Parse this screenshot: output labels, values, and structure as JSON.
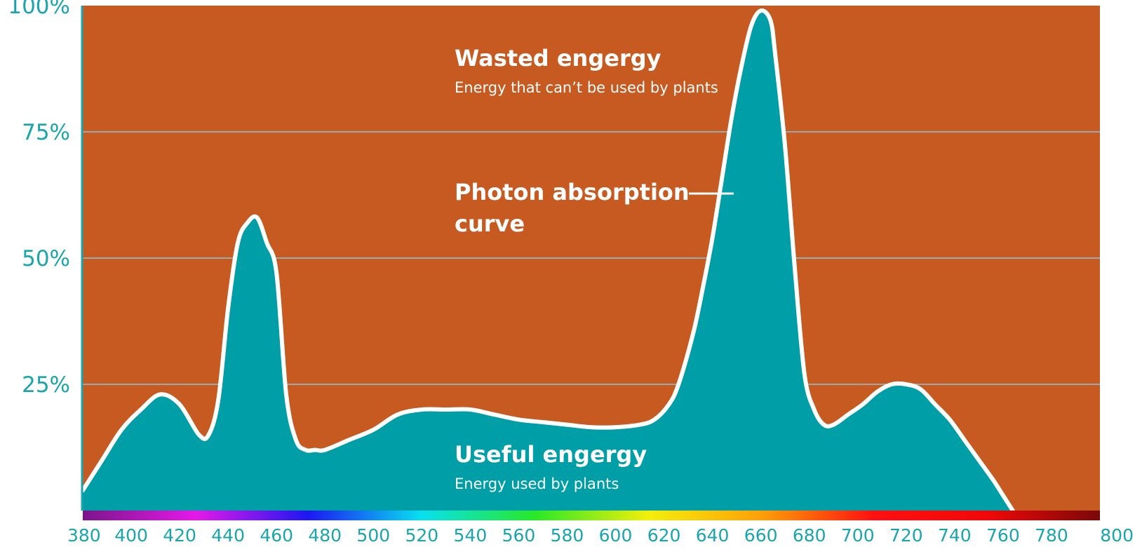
{
  "colors": {
    "background": "#c65a20",
    "fill": "#009ea7",
    "curve": "#ffffff",
    "axis": "#1aa5ad",
    "grid": "#9aa9a8"
  },
  "chart_data": {
    "type": "area",
    "title": "",
    "xlabel": "",
    "ylabel": "",
    "xlim": [
      380,
      800
    ],
    "ylim": [
      0,
      100
    ],
    "grid": true,
    "y_ticks": [
      {
        "value": 25,
        "label": "25%"
      },
      {
        "value": 50,
        "label": "50%"
      },
      {
        "value": 75,
        "label": "75%"
      },
      {
        "value": 100,
        "label": "100%"
      }
    ],
    "x_ticks": [
      {
        "value": 380,
        "label": "380"
      },
      {
        "value": 400,
        "label": "400"
      },
      {
        "value": 420,
        "label": "420"
      },
      {
        "value": 440,
        "label": "440"
      },
      {
        "value": 460,
        "label": "460"
      },
      {
        "value": 480,
        "label": "480"
      },
      {
        "value": 500,
        "label": "500"
      },
      {
        "value": 520,
        "label": "520"
      },
      {
        "value": 540,
        "label": "540"
      },
      {
        "value": 560,
        "label": "560"
      },
      {
        "value": 580,
        "label": "580"
      },
      {
        "value": 600,
        "label": "600"
      },
      {
        "value": 620,
        "label": "620"
      },
      {
        "value": 640,
        "label": "640"
      },
      {
        "value": 660,
        "label": "660"
      },
      {
        "value": 680,
        "label": "680"
      },
      {
        "value": 700,
        "label": "700"
      },
      {
        "value": 720,
        "label": "720"
      },
      {
        "value": 740,
        "label": "740"
      },
      {
        "value": 760,
        "label": "760"
      },
      {
        "value": 780,
        "label": "780"
      },
      {
        "value": 800,
        "label": "800"
      }
    ],
    "series": [
      {
        "x": [
          380,
          388,
          396,
          404,
          412,
          420,
          428,
          432,
          436,
          440,
          444,
          448,
          452,
          456,
          460,
          464,
          468,
          472,
          476,
          480,
          490,
          500,
          510,
          520,
          530,
          540,
          550,
          560,
          570,
          580,
          590,
          600,
          610,
          616,
          622,
          626,
          632,
          636,
          640,
          644,
          648,
          652,
          656,
          660,
          664,
          666,
          670,
          674,
          678,
          682,
          686,
          690,
          696,
          702,
          708,
          714,
          720,
          726,
          732,
          738,
          744,
          750,
          756,
          760,
          764
        ],
        "y": [
          4,
          10,
          16,
          20,
          23,
          21,
          15,
          15,
          22,
          40,
          53,
          57,
          58,
          53,
          47,
          23,
          14,
          12,
          12,
          12,
          14,
          16,
          19,
          20,
          20,
          20,
          19,
          18,
          17.5,
          17,
          16.5,
          16.5,
          17,
          18,
          21,
          25,
          35,
          44,
          54,
          66,
          78,
          88,
          96,
          99,
          97,
          90,
          72,
          48,
          27,
          20,
          17,
          17,
          19,
          21,
          23.5,
          25,
          25,
          24,
          21,
          18,
          14,
          10,
          6,
          3,
          0
        ]
      }
    ],
    "annotations": [
      {
        "title": "Wasted engergy",
        "subtitle": "Energy that can’t be used by plants"
      },
      {
        "title_line1": "Photon absorption",
        "title_line2": "curve"
      },
      {
        "title": "Useful engergy",
        "subtitle": "Energy used by plants"
      }
    ],
    "spectrum_stops": [
      "#7b168a",
      "#e419e8",
      "#1c18f2",
      "#08e0f0",
      "#27e828",
      "#f3ef0a",
      "#ffa008",
      "#ff1010",
      "#f00808",
      "#7a0808"
    ]
  }
}
